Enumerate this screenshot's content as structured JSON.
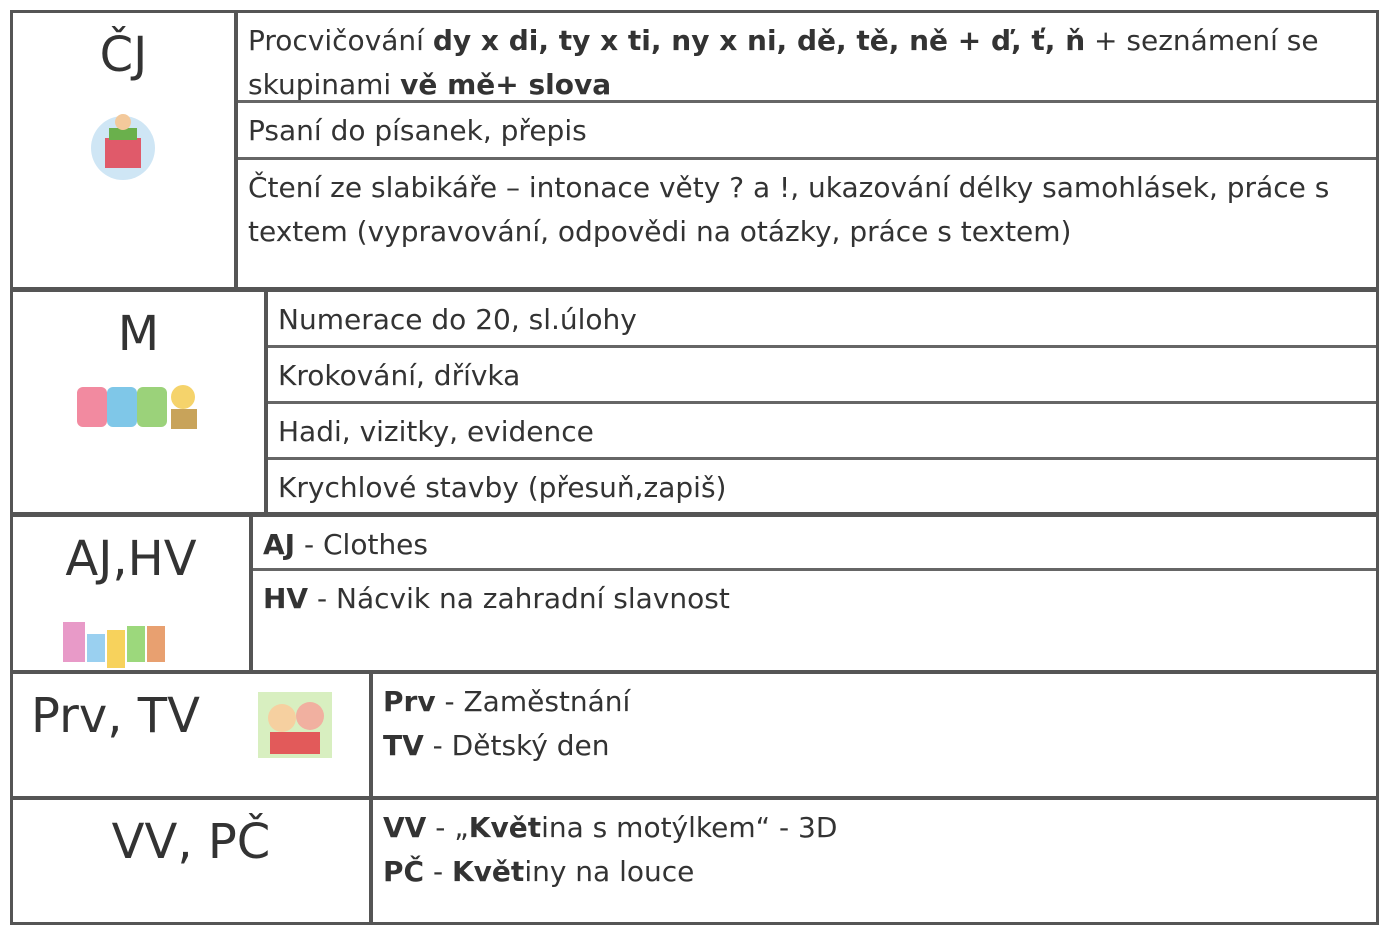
{
  "sections": [
    {
      "subject": "ČJ",
      "cells": [
        {
          "lines": [
            [
              {
                "text": "Procvičování "
              },
              {
                "text": "dy x di, ty x ti, ny x ni, dě, tě, ně + ď, ť, ň",
                "bold": true
              },
              {
                "text": " + seznámení se skupinami "
              },
              {
                "text": "vě mě+ slova",
                "bold": true
              }
            ]
          ]
        },
        {
          "lines": [
            [
              {
                "text": "Psaní  do písanek, přepis"
              }
            ]
          ]
        },
        {
          "lines": [
            [
              {
                "text": "Čtení ze slabikáře – intonace věty ? a !, ukazování délky samohlásek, práce s textem (vypravování, odpovědi na otázky, práce s textem)"
              }
            ]
          ]
        }
      ]
    },
    {
      "subject": "M",
      "cells": [
        {
          "lines": [
            [
              {
                "text": "Numerace do 20,  sl.úlohy"
              }
            ]
          ]
        },
        {
          "lines": [
            [
              {
                "text": "Krokování, dřívka"
              }
            ]
          ]
        },
        {
          "lines": [
            [
              {
                "text": "Hadi, vizitky, evidence"
              }
            ]
          ]
        },
        {
          "lines": [
            [
              {
                "text": "Krychlové stavby (přesuň,zapiš)"
              }
            ]
          ]
        }
      ]
    },
    {
      "subject": "AJ,HV",
      "cells": [
        {
          "lines": [
            [
              {
                "text": "AJ",
                "bold": true
              },
              {
                "text": " - Clothes"
              }
            ]
          ]
        },
        {
          "lines": [
            [
              {
                "text": "HV",
                "bold": true
              },
              {
                "text": " - Nácvik na zahradní slavnost"
              }
            ]
          ]
        }
      ]
    },
    {
      "subject": "Prv, TV",
      "cells": [
        {
          "lines": [
            [
              {
                "text": "Prv",
                "bold": true
              },
              {
                "text": " - Zaměstnání"
              }
            ],
            [
              {
                "text": "TV",
                "bold": true
              },
              {
                "text": " - Dětský den"
              }
            ]
          ]
        }
      ]
    },
    {
      "subject": "VV, PČ",
      "cells": [
        {
          "lines": [
            [
              {
                "text": "VV",
                "bold": true
              },
              {
                "text": "  -  „"
              },
              {
                "text": "Květ",
                "bold": true
              },
              {
                "text": "ina s motýlkem“ - 3D"
              }
            ],
            [
              {
                "text": "PČ",
                "bold": true
              },
              {
                "text": "  -  "
              },
              {
                "text": "Květ",
                "bold": true
              },
              {
                "text": "iny na louce"
              }
            ]
          ]
        }
      ]
    }
  ]
}
